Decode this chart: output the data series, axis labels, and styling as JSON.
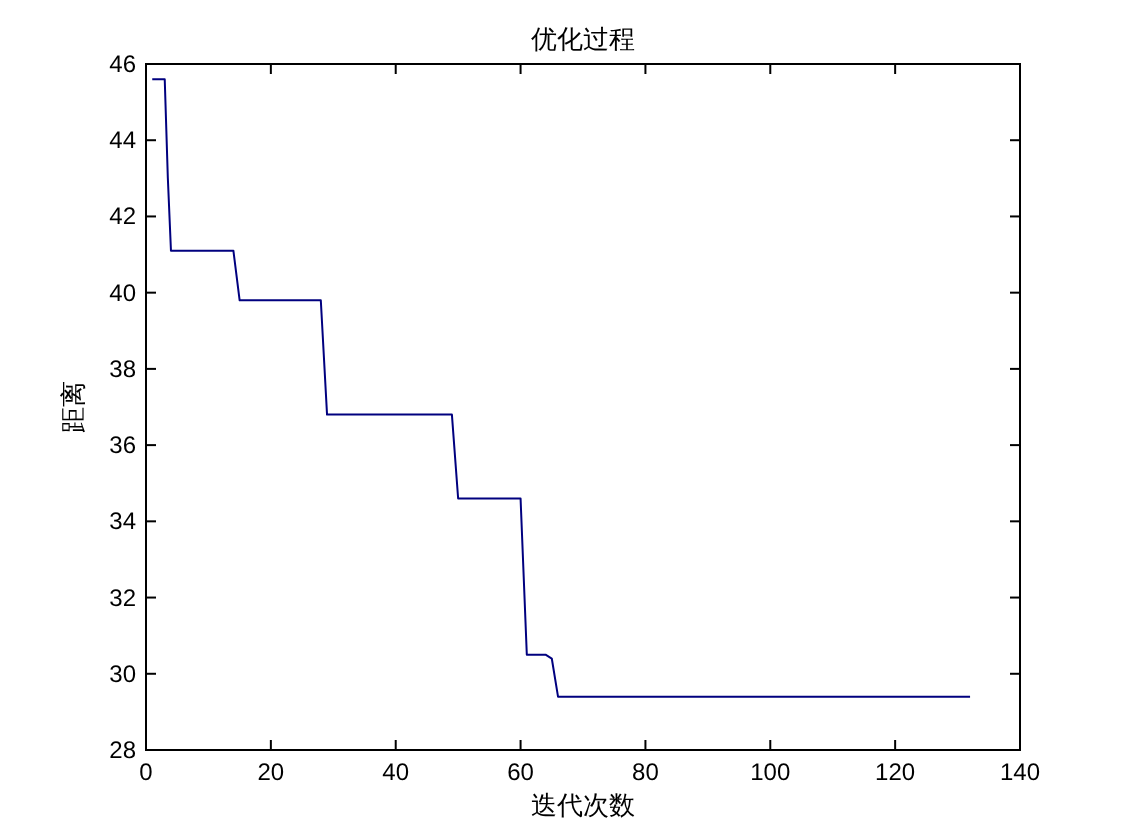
{
  "chart_data": {
    "type": "line",
    "title": "优化过程",
    "xlabel": "迭代次数",
    "ylabel": "距离",
    "series": [
      {
        "color": "#00007f",
        "x": [
          1,
          2,
          3,
          3.5,
          4,
          5,
          14,
          15,
          28,
          29,
          49,
          50,
          60,
          61,
          64,
          65,
          66,
          132
        ],
        "values": [
          45.6,
          45.6,
          45.6,
          43,
          41.1,
          41.1,
          41.1,
          39.8,
          39.8,
          36.8,
          36.8,
          34.6,
          34.6,
          30.5,
          30.5,
          30.4,
          29.4,
          29.4
        ]
      }
    ],
    "xlim": [
      0,
      140
    ],
    "xticks": [
      0,
      20,
      40,
      60,
      80,
      100,
      120,
      140
    ],
    "ylim": [
      28,
      46
    ],
    "yticks": [
      28,
      30,
      32,
      34,
      36,
      38,
      40,
      42,
      44,
      46
    ],
    "grid": false,
    "marker": "none",
    "line_style": "solid"
  }
}
